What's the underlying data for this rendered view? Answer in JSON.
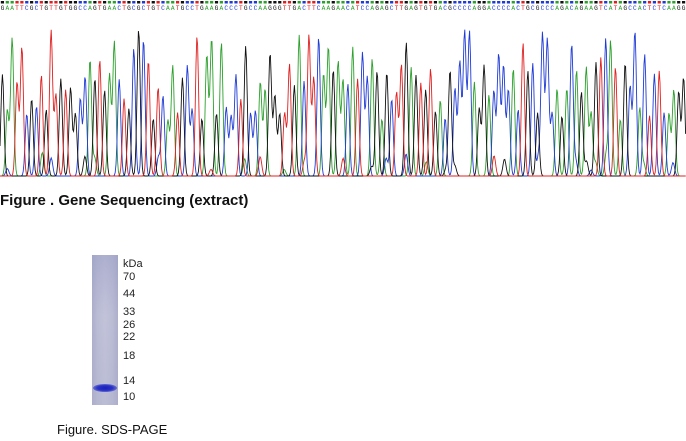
{
  "sequencing": {
    "bases": "GAATTCGCTGTTGTGGCCAGTGAACTGCGCTGTCAATGCCTGAAGACCCTGCCAAGGGTTGACTTCAAGAACATCCAGAGCTTGAGTGTGACGCCCCAGGACCCCACTGCGCCCAGACAGAAGTCATAGCCACTCTCAAGG",
    "colors": {
      "A": "#2ca02c",
      "C": "#1f3bd6",
      "G": "#111111",
      "T": "#e02020"
    }
  },
  "figure1_caption": "Figure . Gene Sequencing (extract)",
  "gel": {
    "unit": "kDa",
    "markers": [
      "70",
      "44",
      "33",
      "26",
      "22",
      "18",
      "14",
      "10"
    ],
    "band_kda": 13
  },
  "figure2_caption": "Figure. SDS-PAGE"
}
